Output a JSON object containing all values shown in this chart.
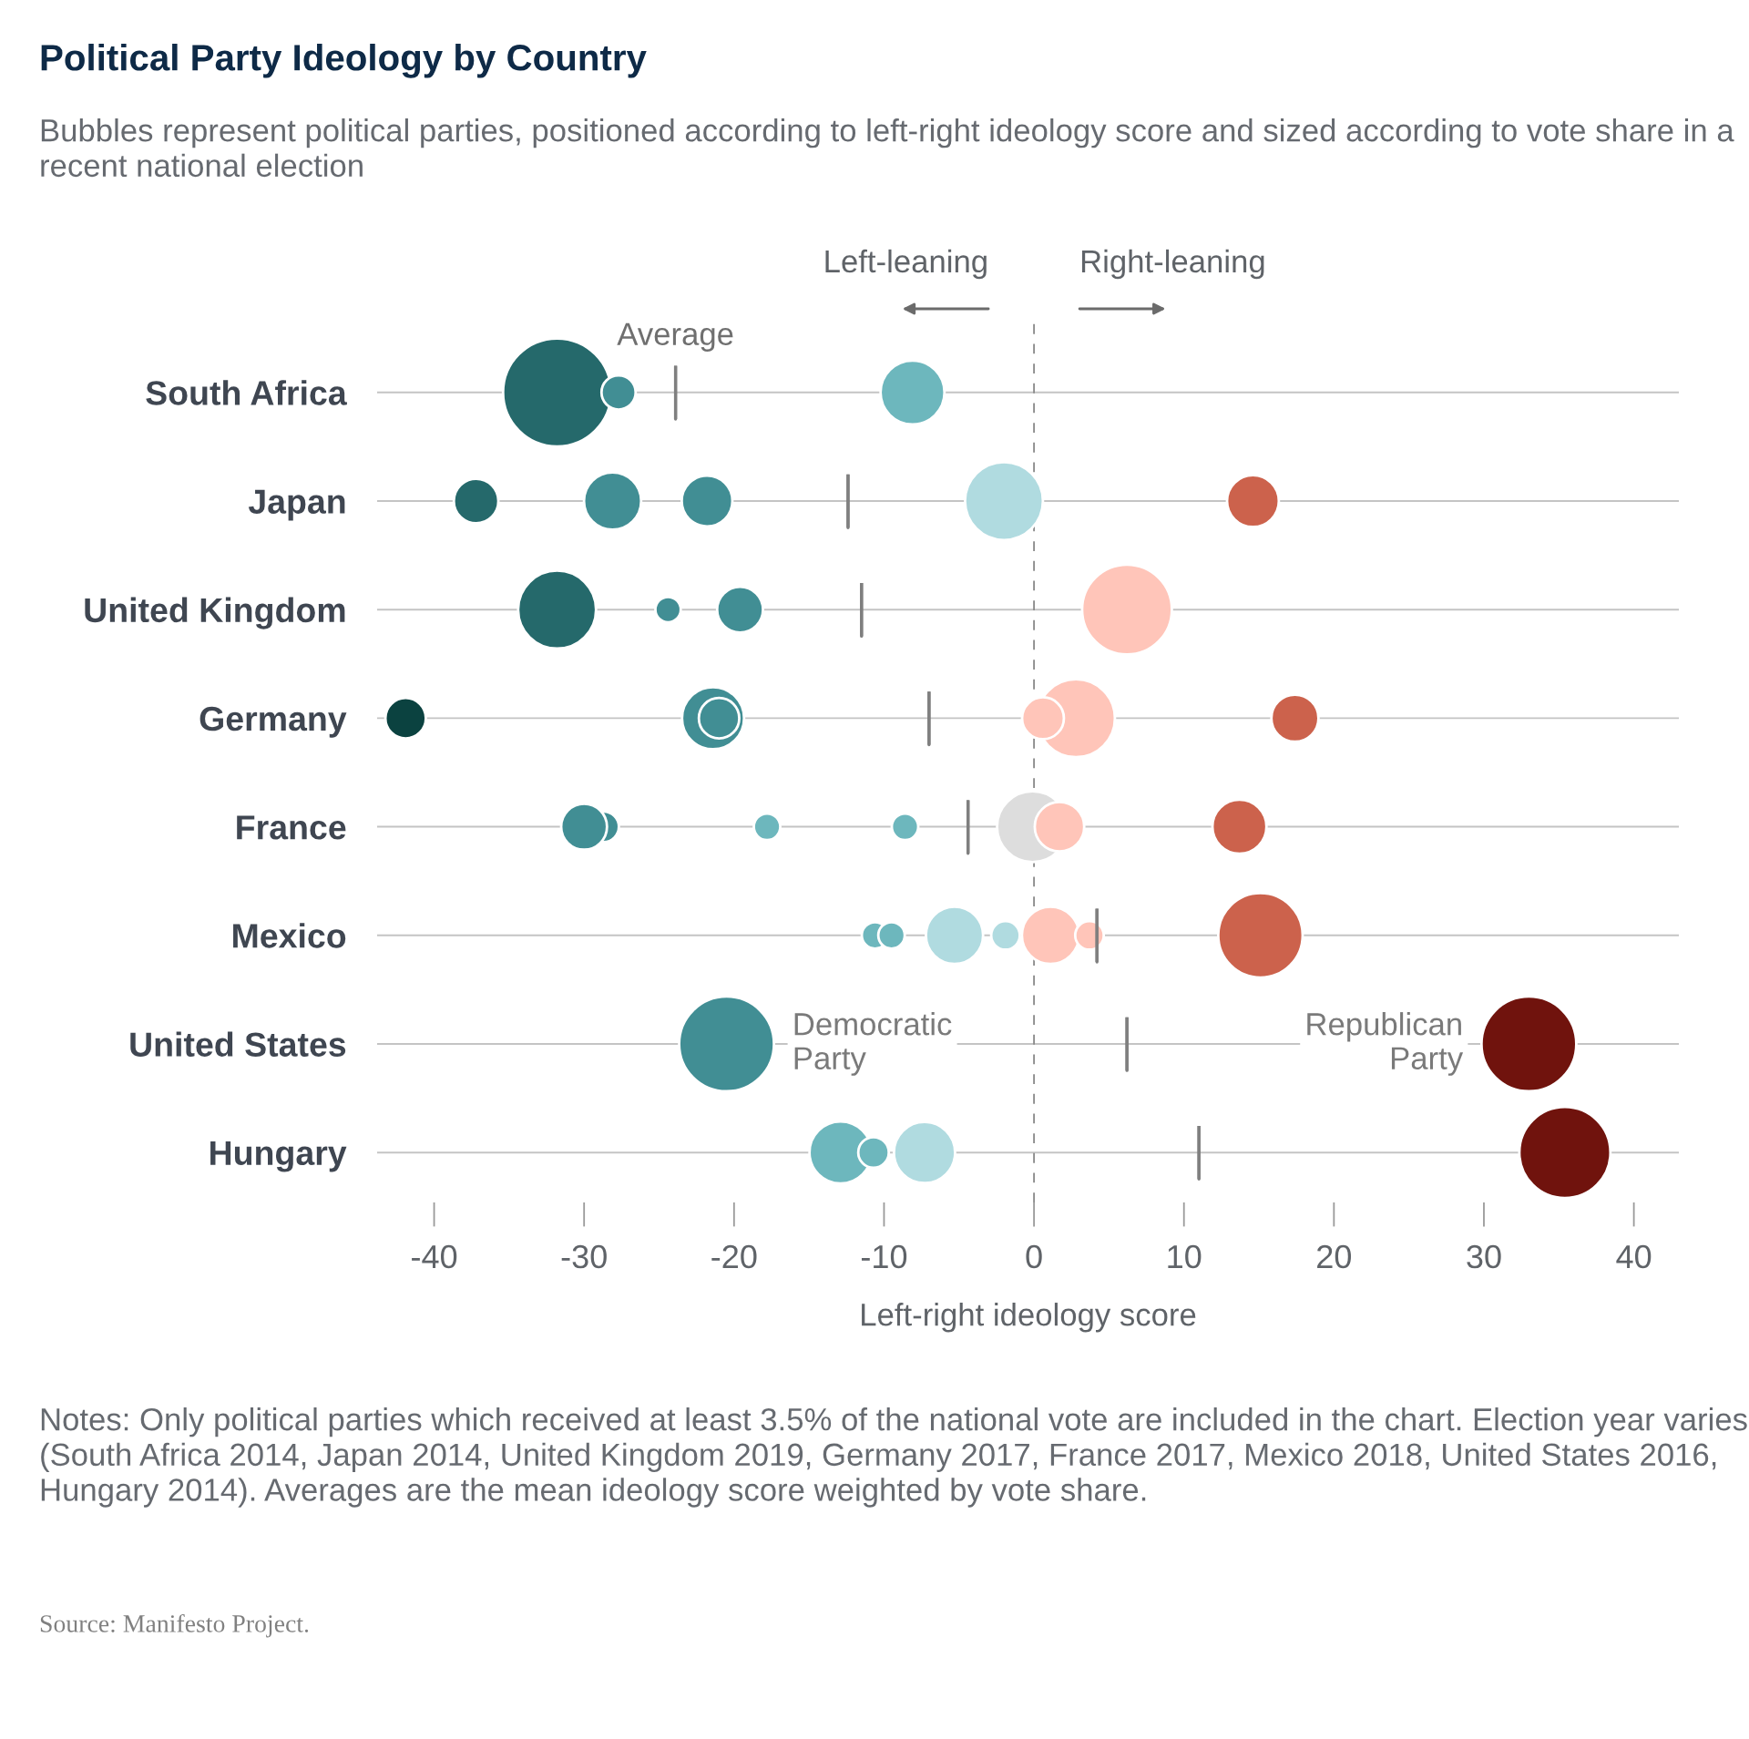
{
  "chart_data": {
    "type": "bubble",
    "orientation": "horizontal",
    "title": "Political Party Ideology by Country",
    "subtitle": "Bubbles represent political parties, positioned according to left-right ideology score and sized according to vote share in a recent national election",
    "xlabel": "Left-right ideology score",
    "categories": [
      "South Africa",
      "Japan",
      "United Kingdom",
      "Germany",
      "France",
      "Mexico",
      "United States",
      "Hungary"
    ],
    "xlim": [
      -43.8,
      43.0
    ],
    "xticks": [
      -40,
      -30,
      -20,
      -10,
      0,
      10,
      20,
      30,
      40
    ],
    "grid": "y",
    "series": [
      {
        "values": [
          -31.8,
          -37.2,
          -31.8,
          -41.9,
          -28.7,
          -10.6,
          -20.5,
          -12.9
        ],
        "sizes": [
          1.0,
          0.17,
          0.52,
          0.14,
          0.08,
          0.06,
          0.77,
          0.33
        ],
        "colors": [
          "#25696b",
          "#25696b",
          "#25696b",
          "#0b4240",
          "#418e94",
          "#6db7bd",
          "#418e94",
          "#6db7bd"
        ]
      },
      {
        "values": [
          -27.7,
          -28.1,
          -24.4,
          -21.4,
          -30.0,
          -9.5,
          33.0,
          -10.7
        ],
        "sizes": [
          0.1,
          0.28,
          0.055,
          0.33,
          0.18,
          0.06,
          0.77,
          0.08
        ],
        "colors": [
          "#418e94",
          "#418e94",
          "#418e94",
          "#418e94",
          "#418e94",
          "#6db7bd",
          "#70130d",
          "#6db7bd"
        ]
      },
      {
        "values": [
          -8.1,
          -21.8,
          -19.6,
          -21.0,
          -17.8,
          -5.3,
          null,
          -7.3
        ],
        "sizes": [
          0.35,
          0.22,
          0.18,
          0.14,
          0.06,
          0.28,
          null,
          0.32
        ],
        "colors": [
          "#6db7bd",
          "#418e94",
          "#418e94",
          "#418e94",
          "#6db7bd",
          "#b0dbe0",
          null,
          "#b0dbe0"
        ]
      },
      {
        "values": [
          null,
          -2.0,
          6.2,
          2.8,
          -8.6,
          -1.9,
          null,
          35.4
        ],
        "sizes": [
          null,
          0.52,
          0.69,
          0.52,
          0.06,
          0.07,
          null,
          0.71
        ],
        "colors": [
          null,
          "#b0dbe0",
          "#ffc5b9",
          "#ffc5b9",
          "#6db7bd",
          "#b0dbe0",
          null,
          "#70130d"
        ]
      },
      {
        "values": [
          null,
          14.6,
          null,
          0.6,
          -0.1,
          1.1,
          null,
          null
        ],
        "sizes": [
          null,
          0.23,
          null,
          0.15,
          0.43,
          0.28,
          null,
          null
        ],
        "colors": [
          null,
          "#cc624c",
          null,
          "#ffc5b9",
          "#dddddd",
          "#ffc5b9",
          null,
          null
        ]
      },
      {
        "values": [
          null,
          null,
          null,
          17.4,
          1.7,
          3.7,
          null,
          null
        ],
        "sizes": [
          null,
          null,
          null,
          0.19,
          0.21,
          0.07,
          null,
          null
        ],
        "colors": [
          null,
          null,
          null,
          "#cc624c",
          "#ffc5b9",
          "#ffc5b9",
          null,
          null
        ]
      },
      {
        "values": [
          null,
          null,
          null,
          null,
          13.7,
          15.1,
          null,
          null
        ],
        "sizes": [
          null,
          null,
          null,
          null,
          0.25,
          0.61,
          null,
          null
        ],
        "colors": [
          null,
          null,
          null,
          null,
          "#cc624c",
          "#cc624c",
          null,
          null
        ]
      },
      {
        "type": "box",
        "name": "Average",
        "color": "#7f7f7f",
        "boxes": [
          {
            "low": -23.9,
            "q1": -23.9,
            "median": -23.9,
            "q3": -23.9,
            "high": -23.9
          },
          {
            "low": -12.4,
            "q1": -12.4,
            "median": -12.4,
            "q3": -12.4,
            "high": -12.4
          },
          {
            "low": -11.5,
            "q1": -11.5,
            "median": -11.5,
            "q3": -11.5,
            "high": -11.5
          },
          {
            "low": -7.0,
            "q1": -7.0,
            "median": -7.0,
            "q3": -7.0,
            "high": -7.0
          },
          {
            "low": -4.4,
            "q1": -4.4,
            "median": -4.4,
            "q3": -4.4,
            "high": -4.4
          },
          {
            "low": 4.2,
            "q1": 4.2,
            "median": 4.2,
            "q3": 4.2,
            "high": 4.2
          },
          {
            "low": 6.2,
            "q1": 6.2,
            "median": 6.2,
            "q3": 6.2,
            "high": 6.2
          },
          {
            "low": 11.0,
            "q1": 11.0,
            "median": 11.0,
            "q3": 11.0,
            "high": 11.0
          }
        ]
      }
    ],
    "ref_lines": [
      {
        "axis": "x",
        "value": 0,
        "line_style": "dashed",
        "color": "#8a8a8a"
      }
    ],
    "annotations": [
      "Left-leaning",
      "Right-leaning",
      "Notes: Only political parties which received at least 3.5% of the national vote are included in the chart. Election year varies (South Africa 2014, Japan 2014, United Kingdom 2019, Germany 2017, France 2017, Mexico 2018, United States 2016, Hungary 2014). Averages are the mean ideology score weighted by vote share.",
      "Source: Manifesto Project.",
      {
        "text": "Democratic\nParty",
        "x": -20.5,
        "y": "United States"
      },
      {
        "text": "Republican\nParty",
        "x": 33.0,
        "y": "United States"
      }
    ]
  }
}
